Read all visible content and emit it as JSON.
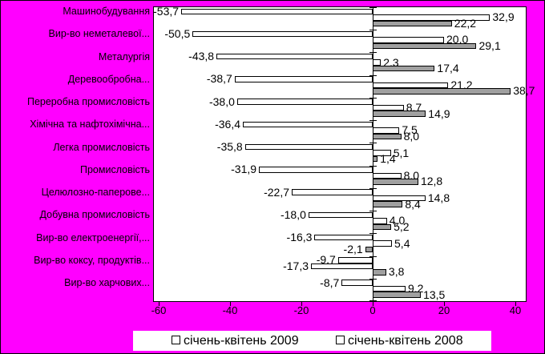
{
  "chart_data": {
    "type": "bar",
    "orientation": "horizontal",
    "title": "",
    "xlabel": "",
    "ylabel": "",
    "xlim": [
      -61.3,
      42.9
    ],
    "x_ticks": [
      -60,
      -40,
      -20,
      0,
      20,
      40
    ],
    "x_tick_labels": [
      "-60",
      "-40",
      "-20",
      "0",
      "20",
      "40"
    ],
    "grid": false,
    "background_color": "#FF00FF",
    "plot_background_color": "#FFFFFF",
    "bar_gray_color": "#A0A0A0",
    "categories": [
      "Машинобудування",
      "Вир-во неметалевої...",
      "Металургія",
      "Деревообробна...",
      "Переробна промисловість",
      "Хімічна та нафтохімічна...",
      "Легка промисловість",
      "Промисловість",
      "Целюлозно-паперове...",
      "Добувна промисловість",
      "Вир-во електроенергії,...",
      "Вир-во коксу, продуктів...",
      "Вир-во харчових..."
    ],
    "series": [
      {
        "name": "січень-квітень 2009",
        "fill": "#FFFFFF",
        "values": [
          -53.7,
          -50.5,
          -43.8,
          -38.7,
          -38.0,
          -36.4,
          -35.8,
          -31.9,
          -22.7,
          -18.0,
          -16.3,
          -9.7,
          -8.7
        ]
      },
      {
        "name": "січень-квітень 2008",
        "fill": "#FFFFFF",
        "values": [
          32.9,
          20.0,
          2.3,
          21.2,
          8.7,
          7.5,
          5.1,
          8.0,
          14.8,
          4.0,
          5.4,
          -17.3,
          9.2
        ]
      },
      {
        "name": "",
        "fill": "#A0A0A0",
        "values": [
          22.2,
          29.1,
          17.4,
          38.7,
          14.9,
          8.0,
          1.4,
          12.8,
          8.4,
          5.2,
          -2.1,
          3.8,
          13.5
        ]
      }
    ],
    "data_labels": {
      "decimal_separator": ",",
      "decimals": 1,
      "position": "outside-end"
    },
    "legend": [
      {
        "label": "січень-квітень 2009",
        "marker_fill": "#FFFFFF"
      },
      {
        "label": "січень-квітень 2008",
        "marker_fill": "#FFFFFF"
      }
    ],
    "legend_position": "bottom"
  }
}
